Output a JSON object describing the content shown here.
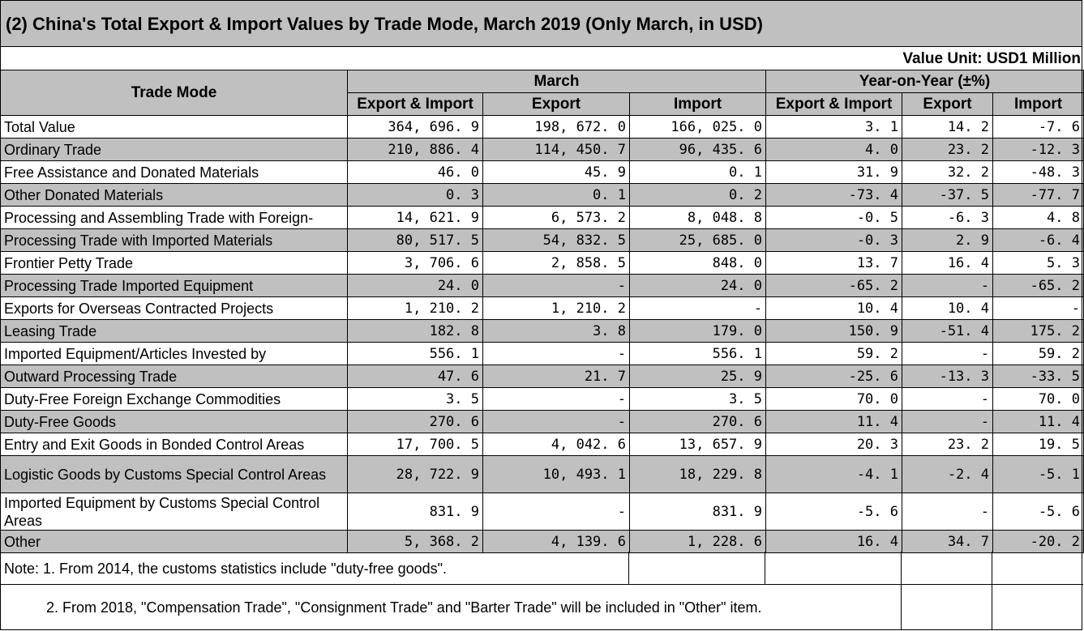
{
  "title": "(2) China's Total Export & Import Values by Trade Mode, March 2019 (Only March, in USD)",
  "unit": "Value Unit: USD1 Million",
  "header": {
    "trade_mode": "Trade Mode",
    "march": "March",
    "yoy": "Year-on-Year (±%)",
    "sub": [
      "Export & Import",
      "Export",
      "Import",
      "Export & Import",
      "Export",
      "Import"
    ]
  },
  "rows": [
    {
      "label": "Total Value",
      "v": [
        "364, 696. 9",
        "198, 672. 0",
        "166, 025. 0",
        "3. 1",
        "14. 2",
        "-7. 6"
      ]
    },
    {
      "label": "Ordinary Trade",
      "v": [
        "210, 886. 4",
        "114, 450. 7",
        "96, 435. 6",
        "4. 0",
        "23. 2",
        "-12. 3"
      ]
    },
    {
      "label": "Free Assistance and Donated Materials",
      "v": [
        "46. 0",
        "45. 9",
        "0. 1",
        "31. 9",
        "32. 2",
        "-48. 3"
      ]
    },
    {
      "label": "Other Donated Materials",
      "v": [
        "0. 3",
        "0. 1",
        "0. 2",
        "-73. 4",
        "-37. 5",
        "-77. 7"
      ]
    },
    {
      "label": "Processing and Assembling Trade with Foreign-",
      "v": [
        "14, 621. 9",
        "6, 573. 2",
        "8, 048. 8",
        "-0. 5",
        "-6. 3",
        "4. 8"
      ]
    },
    {
      "label": "Processing Trade with Imported Materials",
      "v": [
        "80, 517. 5",
        "54, 832. 5",
        "25, 685. 0",
        "-0. 3",
        "2. 9",
        "-6. 4"
      ]
    },
    {
      "label": "Frontier Petty Trade",
      "v": [
        "3, 706. 6",
        "2, 858. 5",
        "848. 0",
        "13. 7",
        "16. 4",
        "5. 3"
      ]
    },
    {
      "label": "Processing Trade Imported Equipment",
      "v": [
        "24. 0",
        "-",
        "24. 0",
        "-65. 2",
        "-",
        "-65. 2"
      ]
    },
    {
      "label": "Exports for Overseas Contracted Projects",
      "v": [
        "1, 210. 2",
        "1, 210. 2",
        "-",
        "10. 4",
        "10. 4",
        "-"
      ]
    },
    {
      "label": "Leasing Trade",
      "v": [
        "182. 8",
        "3. 8",
        "179. 0",
        "150. 9",
        "-51. 4",
        "175. 2"
      ]
    },
    {
      "label": "Imported Equipment/Articles Invested by",
      "v": [
        "556. 1",
        "-",
        "556. 1",
        "59. 2",
        "-",
        "59. 2"
      ]
    },
    {
      "label": "Outward Processing Trade",
      "v": [
        "47. 6",
        "21. 7",
        "25. 9",
        "-25. 6",
        "-13. 3",
        "-33. 5"
      ]
    },
    {
      "label": "Duty-Free Foreign Exchange Commodities",
      "v": [
        "3. 5",
        "-",
        "3. 5",
        "70. 0",
        "-",
        "70. 0"
      ]
    },
    {
      "label": "Duty-Free Goods",
      "v": [
        "270. 6",
        "-",
        "270. 6",
        "11. 4",
        "-",
        "11. 4"
      ]
    },
    {
      "label": "Entry and Exit Goods in Bonded Control Areas",
      "v": [
        "17, 700. 5",
        "4, 042. 6",
        "13, 657. 9",
        "20. 3",
        "23. 2",
        "19. 5"
      ]
    },
    {
      "label": "Logistic Goods by Customs Special Control Areas",
      "v": [
        "28, 722. 9",
        "10, 493. 1",
        "18, 229. 8",
        "-4. 1",
        "-2. 4",
        "-5. 1"
      ]
    },
    {
      "label": "Imported Equipment by Customs Special Control Areas",
      "v": [
        "831. 9",
        "-",
        "831. 9",
        "-5. 6",
        "-",
        "-5. 6"
      ]
    },
    {
      "label": "Other",
      "v": [
        "5, 368. 2",
        "4, 139. 6",
        "1, 228. 6",
        "16. 4",
        "34. 7",
        "-20. 2"
      ]
    }
  ],
  "notes": [
    "Note: 1. From 2014, the customs statistics include \"duty-free goods\".",
    "2. From 2018, \"Compensation Trade\", \"Consignment Trade\" and \"Barter Trade\" will be included in \"Other\" item."
  ]
}
